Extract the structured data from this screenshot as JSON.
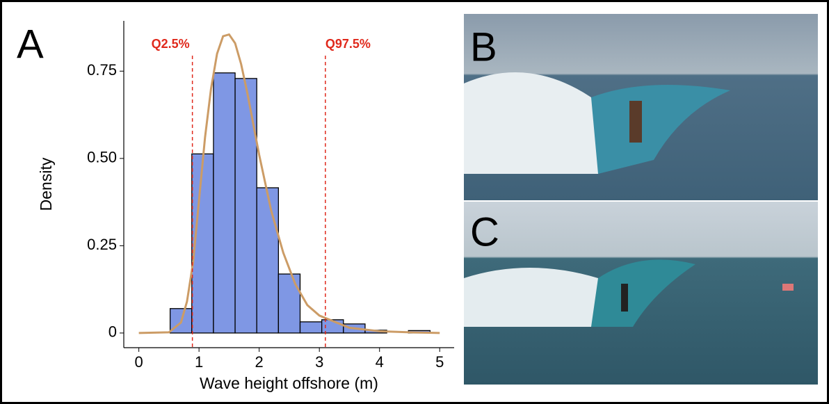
{
  "chart_data": {
    "type": "histogram",
    "panel_label": "A",
    "x_label": "Wave height offshore (m)",
    "y_label": "Density",
    "bins": [
      0.52,
      0.88,
      1.24,
      1.6,
      1.96,
      2.32,
      2.68,
      3.04,
      3.4,
      3.76,
      4.12,
      4.48,
      4.84
    ],
    "values": [
      0.07,
      0.513,
      0.745,
      0.729,
      0.416,
      0.169,
      0.032,
      0.038,
      0.026,
      0.008,
      0,
      0.007
    ],
    "color": "#7f97e4",
    "density": {
      "color": "#cc9c66",
      "x": [
        0,
        0.5,
        0.7,
        0.8,
        0.9,
        1.0,
        1.1,
        1.2,
        1.3,
        1.4,
        1.5,
        1.6,
        1.7,
        1.8,
        2.0,
        2.2,
        2.4,
        2.6,
        2.8,
        3.0,
        3.5,
        4.0,
        4.5,
        5.0
      ],
      "values": [
        0,
        0.002,
        0.03,
        0.09,
        0.2,
        0.38,
        0.56,
        0.7,
        0.8,
        0.85,
        0.855,
        0.83,
        0.77,
        0.69,
        0.51,
        0.35,
        0.23,
        0.14,
        0.08,
        0.05,
        0.015,
        0.005,
        0.002,
        0
      ]
    },
    "quantile_lines": [
      {
        "label": "Q2.5%",
        "value": 0.89
      },
      {
        "label": "Q97.5%",
        "value": 3.1
      }
    ],
    "quantile_color": "#e0291c",
    "xlim": [
      -0.25,
      5.24
    ],
    "ylim": [
      -0.042,
      0.894
    ],
    "xticks": [
      0,
      1,
      2,
      3,
      4,
      5
    ],
    "yticks": [
      0,
      0.25,
      {
        "value": 0.5,
        "label": "0.50"
      },
      0.75
    ]
  },
  "photos": [
    {
      "label": "B"
    },
    {
      "label": "C"
    }
  ]
}
